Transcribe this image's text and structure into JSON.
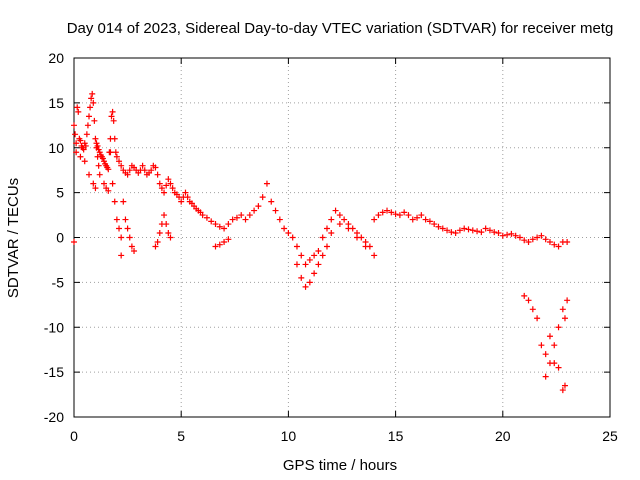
{
  "chart_data": {
    "type": "scatter",
    "title": "Day 014 of 2023, Sidereal Day-to-day VTEC variation (SDTVAR) for receiver metg",
    "xlabel": "GPS time / hours",
    "ylabel": "SDTVAR / TECUs",
    "xlim": [
      0,
      25
    ],
    "ylim": [
      -20,
      20
    ],
    "xticks": [
      0,
      5,
      10,
      15,
      20,
      25
    ],
    "yticks": [
      -20,
      -15,
      -10,
      -5,
      0,
      5,
      10,
      15,
      20
    ],
    "grid": true,
    "marker": "+",
    "series_color": "#ff0000",
    "series": [
      {
        "name": "SDTVAR",
        "x": [
          0.0,
          0.05,
          0.1,
          0.15,
          0.2,
          0.25,
          0.3,
          0.35,
          0.4,
          0.45,
          0.5,
          0.55,
          0.6,
          0.65,
          0.7,
          0.75,
          0.8,
          0.85,
          0.9,
          0.95,
          1.0,
          1.05,
          1.1,
          1.15,
          1.2,
          1.25,
          1.3,
          1.35,
          1.4,
          1.45,
          1.5,
          1.55,
          1.6,
          1.65,
          1.7,
          1.75,
          1.8,
          1.85,
          1.9,
          1.95,
          2.0,
          2.1,
          2.2,
          2.3,
          2.4,
          2.5,
          2.6,
          2.7,
          2.8,
          2.9,
          3.0,
          3.1,
          3.2,
          3.3,
          3.4,
          3.5,
          3.6,
          3.7,
          3.8,
          3.9,
          4.0,
          4.1,
          4.2,
          4.3,
          4.4,
          4.5,
          4.6,
          4.7,
          4.8,
          4.9,
          5.0,
          5.1,
          5.2,
          5.3,
          5.4,
          5.5,
          5.6,
          5.7,
          5.8,
          5.9,
          6.0,
          6.2,
          6.4,
          6.6,
          6.8,
          7.0,
          7.2,
          7.4,
          7.6,
          7.8,
          8.0,
          8.2,
          8.4,
          8.6,
          8.8,
          9.0,
          9.2,
          9.4,
          9.6,
          9.8,
          10.0,
          10.2,
          10.4,
          10.6,
          10.8,
          11.0,
          11.2,
          11.4,
          11.6,
          11.8,
          12.0,
          12.2,
          12.4,
          12.6,
          12.8,
          13.0,
          13.2,
          13.4,
          13.6,
          13.8,
          14.0,
          14.2,
          14.4,
          14.6,
          14.8,
          15.0,
          15.2,
          15.4,
          15.6,
          15.8,
          16.0,
          16.2,
          16.4,
          16.6,
          16.8,
          17.0,
          17.2,
          17.4,
          17.6,
          17.8,
          18.0,
          18.2,
          18.4,
          18.6,
          18.8,
          19.0,
          19.2,
          19.4,
          19.6,
          19.8,
          20.0,
          20.2,
          20.4,
          20.6,
          20.8,
          21.0,
          21.2,
          21.4,
          21.6,
          21.8,
          22.0,
          22.2,
          22.4,
          22.6,
          22.8,
          23.0,
          0.1,
          0.3,
          0.5,
          0.7,
          0.9,
          1.0,
          1.05,
          1.1,
          1.15,
          1.2,
          1.4,
          1.5,
          1.6,
          1.7,
          1.8,
          1.9,
          2.0,
          2.1,
          2.2,
          2.3,
          2.4,
          2.5,
          2.6,
          2.7,
          2.8,
          3.8,
          3.9,
          4.0,
          4.1,
          4.2,
          4.3,
          4.4,
          4.5,
          6.6,
          6.8,
          7.0,
          7.2,
          10.4,
          10.6,
          10.8,
          11.0,
          11.2,
          11.4,
          11.6,
          11.8,
          12.0,
          12.4,
          12.8,
          13.2,
          13.6,
          14.0,
          21.0,
          21.2,
          21.4,
          21.6,
          21.8,
          22.0,
          22.2,
          22.4,
          22.6,
          22.8,
          22.9,
          23.0,
          22.0,
          22.2,
          22.4,
          22.6,
          22.8,
          22.9,
          0.0,
          2.2
        ],
        "y": [
          12.5,
          11.5,
          10.5,
          14.5,
          14.0,
          11.0,
          10.8,
          10.2,
          10.0,
          9.8,
          10.5,
          10.2,
          11.5,
          12.5,
          13.5,
          14.5,
          15.5,
          16.0,
          15.0,
          13.0,
          11.0,
          10.5,
          10.2,
          9.8,
          9.5,
          9.2,
          9.0,
          8.8,
          8.5,
          8.2,
          8.0,
          7.8,
          7.6,
          9.5,
          11.0,
          13.5,
          14.0,
          13.0,
          11.0,
          9.5,
          9.0,
          8.5,
          8.0,
          7.5,
          7.2,
          7.0,
          7.5,
          8.0,
          7.8,
          7.5,
          7.2,
          7.5,
          8.0,
          7.5,
          7.0,
          7.2,
          7.5,
          8.0,
          7.8,
          7.0,
          6.0,
          5.5,
          5.0,
          5.8,
          6.5,
          6.0,
          5.5,
          5.0,
          4.8,
          4.5,
          4.0,
          4.5,
          5.0,
          4.5,
          4.0,
          3.8,
          3.5,
          3.2,
          3.0,
          2.8,
          2.5,
          2.2,
          1.8,
          1.5,
          1.2,
          1.0,
          1.5,
          2.0,
          2.2,
          2.5,
          2.0,
          2.5,
          3.0,
          3.5,
          4.5,
          6.0,
          4.0,
          3.0,
          2.0,
          1.0,
          0.5,
          0.0,
          -1.0,
          -2.0,
          -3.0,
          -2.5,
          -2.0,
          -1.5,
          0.0,
          1.0,
          2.0,
          3.0,
          2.5,
          2.0,
          1.5,
          1.0,
          0.5,
          0.0,
          -0.5,
          -1.0,
          2.0,
          2.5,
          2.8,
          3.0,
          2.8,
          2.6,
          2.5,
          2.8,
          2.5,
          2.0,
          2.2,
          2.5,
          2.0,
          1.8,
          1.5,
          1.2,
          1.0,
          0.8,
          0.6,
          0.5,
          0.8,
          1.0,
          0.9,
          0.8,
          0.7,
          0.6,
          1.0,
          0.8,
          0.6,
          0.5,
          0.2,
          0.3,
          0.4,
          0.2,
          0.0,
          -0.3,
          -0.5,
          -0.2,
          0.0,
          0.2,
          -0.2,
          -0.5,
          -0.8,
          -1.0,
          -0.5,
          -0.5,
          9.5,
          9.0,
          8.5,
          7.0,
          6.0,
          5.5,
          10.0,
          9.0,
          8.0,
          7.0,
          6.0,
          5.5,
          5.2,
          9.5,
          6.0,
          4.0,
          2.0,
          1.0,
          0.0,
          4.0,
          2.0,
          1.0,
          0.0,
          -1.0,
          -1.5,
          -1.0,
          -0.5,
          0.5,
          1.5,
          2.5,
          1.5,
          0.5,
          0.0,
          -1.0,
          -0.8,
          -0.5,
          -0.2,
          -3.0,
          -4.5,
          -5.5,
          -5.0,
          -4.0,
          -3.0,
          -2.0,
          -1.0,
          0.5,
          1.5,
          1.0,
          0.0,
          -1.0,
          -2.0,
          -6.5,
          -7.0,
          -8.0,
          -9.0,
          -12.0,
          -15.5,
          -14.0,
          -12.0,
          -10.0,
          -8.0,
          -9.0,
          -7.0,
          -13.0,
          -11.0,
          -14.0,
          -14.5,
          -17.0,
          -16.5,
          -0.5,
          -2.0
        ]
      }
    ]
  }
}
